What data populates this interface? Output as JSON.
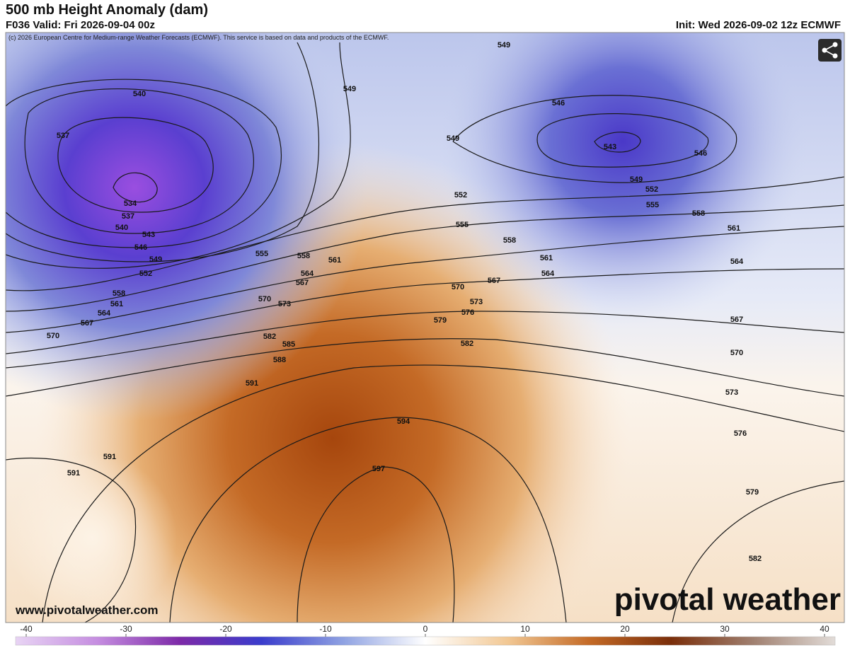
{
  "header": {
    "title": "500 mb Height Anomaly (dam)",
    "valid": "F036 Valid: Fri 2026-09-04 00z",
    "init": "Init: Wed 2026-09-02 12z ECMWF"
  },
  "map": {
    "copyright": "(c) 2026 European Centre for Medium-range Weather Forecasts (ECMWF). This service is based on data and products of the ECMWF.",
    "contour_labels": [
      "540",
      "537",
      "534",
      "537",
      "540",
      "543",
      "546",
      "549",
      "552",
      "549",
      "549",
      "549",
      "546",
      "543",
      "546",
      "549",
      "552",
      "555",
      "558",
      "561",
      "552",
      "555",
      "558",
      "561",
      "564",
      "567",
      "570",
      "555",
      "558",
      "561",
      "564",
      "567",
      "558",
      "561",
      "564",
      "567",
      "570",
      "570",
      "573",
      "573",
      "576",
      "579",
      "582",
      "585",
      "588",
      "582",
      "591",
      "594",
      "597",
      "591",
      "591",
      "564",
      "567",
      "570",
      "573",
      "576",
      "579",
      "582"
    ],
    "website": "www.pivotalweather.com",
    "logo": "pivotal weather"
  },
  "colorbar": {
    "range": [
      -40,
      40
    ],
    "ticks": [
      -40,
      -30,
      -20,
      -10,
      0,
      10,
      20,
      30,
      40
    ]
  }
}
